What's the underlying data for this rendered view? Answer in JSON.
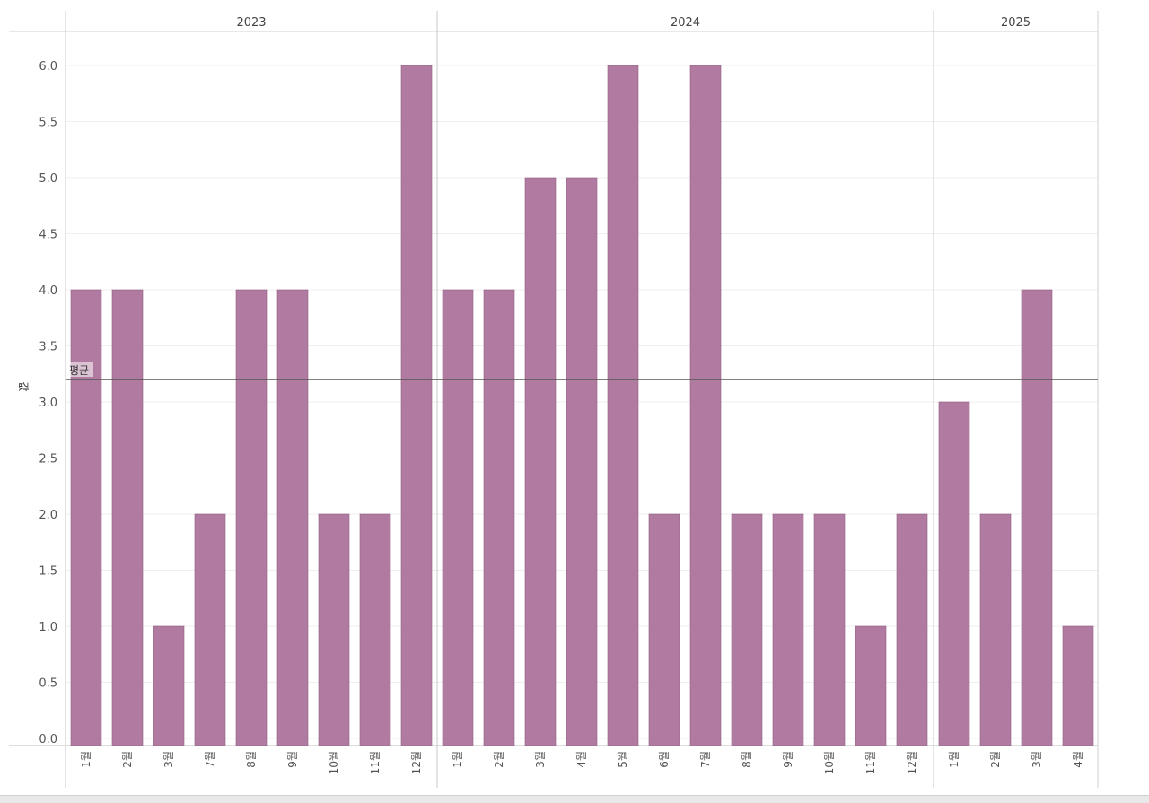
{
  "chart_data": {
    "type": "bar",
    "title": "",
    "xlabel": "",
    "ylabel": "값",
    "ylim": [
      0,
      6.3
    ],
    "yticks": [
      "0.0",
      "0.5",
      "1.0",
      "1.5",
      "2.0",
      "2.5",
      "3.0",
      "3.5",
      "4.0",
      "4.5",
      "5.0",
      "5.5",
      "6.0"
    ],
    "ytick_values": [
      0,
      0.5,
      1,
      1.5,
      2,
      2.5,
      3,
      3.5,
      4,
      4.5,
      5,
      5.5,
      6
    ],
    "bar_color": "#b07aa1",
    "bar_stroke": "#8f5f83",
    "reference_line": {
      "label": "평균",
      "value": 3.2,
      "color": "#555555"
    },
    "groups": [
      {
        "year": "2023",
        "categories": [
          "1월",
          "2월",
          "3월",
          "7월",
          "8월",
          "9월",
          "10월",
          "11월",
          "12월"
        ],
        "values": [
          4,
          4,
          1,
          2,
          4,
          4,
          2,
          2,
          6
        ]
      },
      {
        "year": "2024",
        "categories": [
          "1월",
          "2월",
          "3월",
          "4월",
          "5월",
          "6월",
          "7월",
          "8월",
          "9월",
          "10월",
          "11월",
          "12월"
        ],
        "values": [
          4,
          4,
          5,
          5,
          6,
          2,
          6,
          2,
          2,
          2,
          1,
          2
        ]
      },
      {
        "year": "2025",
        "categories": [
          "1월",
          "2월",
          "3월",
          "4월"
        ],
        "values": [
          3,
          2,
          4,
          1
        ]
      }
    ]
  }
}
